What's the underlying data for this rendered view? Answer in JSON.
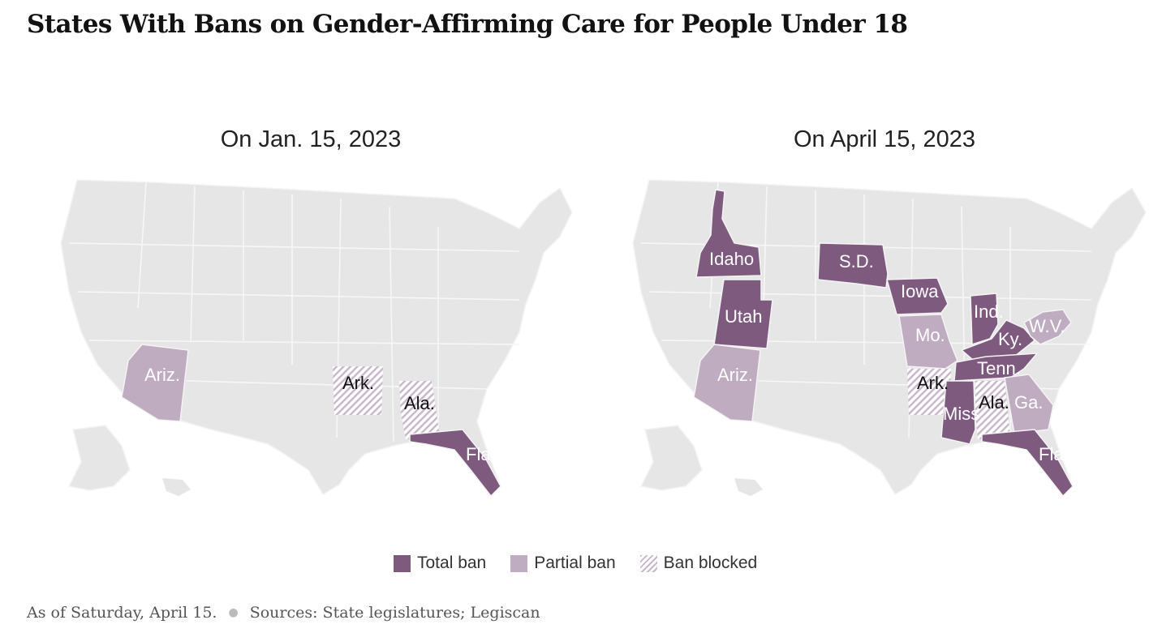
{
  "title": "States With Bans on Gender-Affirming Care for People Under 18",
  "maps": [
    {
      "title": "On Jan. 15, 2023",
      "states": [
        {
          "label": "Ariz.",
          "status": "Partial ban"
        },
        {
          "label": "Ark.",
          "status": "Ban blocked"
        },
        {
          "label": "Ala.",
          "status": "Ban blocked"
        },
        {
          "label": "Fla.",
          "status": "Total ban"
        }
      ]
    },
    {
      "title": "On April 15, 2023",
      "states": [
        {
          "label": "Idaho",
          "status": "Total ban"
        },
        {
          "label": "Utah",
          "status": "Total ban"
        },
        {
          "label": "S.D.",
          "status": "Total ban"
        },
        {
          "label": "Iowa",
          "status": "Total ban"
        },
        {
          "label": "Ind.",
          "status": "Total ban"
        },
        {
          "label": "Ky.",
          "status": "Total ban"
        },
        {
          "label": "W.V.",
          "status": "Partial ban"
        },
        {
          "label": "Mo.",
          "status": "Partial ban"
        },
        {
          "label": "Ariz.",
          "status": "Partial ban"
        },
        {
          "label": "Ark.",
          "status": "Ban blocked"
        },
        {
          "label": "Tenn.",
          "status": "Total ban"
        },
        {
          "label": "Miss.",
          "status": "Total ban"
        },
        {
          "label": "Ala.",
          "status": "Ban blocked"
        },
        {
          "label": "Ga.",
          "status": "Partial ban"
        },
        {
          "label": "Fla.",
          "status": "Total ban"
        }
      ]
    }
  ],
  "legend": {
    "total": "Total ban",
    "partial": "Partial ban",
    "blocked": "Ban blocked"
  },
  "colors": {
    "total": "#7e5a7f",
    "partial": "#c0acc1",
    "blocked": "#c9b6ca",
    "base": "#e6e6e6",
    "border": "#f4f4f4"
  },
  "footer": {
    "note": "As of Saturday, April 15.",
    "sources": "Sources: State legislatures; Legiscan"
  }
}
